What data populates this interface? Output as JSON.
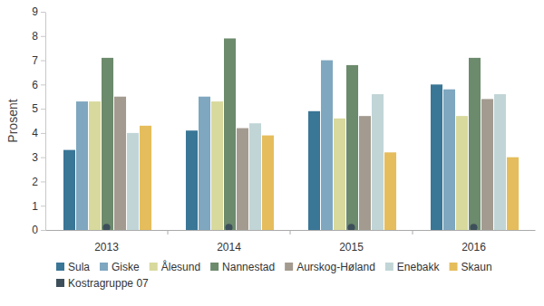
{
  "chart_data": {
    "type": "bar",
    "y_label": "Prosent",
    "categories": [
      "2013",
      "2014",
      "2015",
      "2016"
    ],
    "series": [
      {
        "name": "Sula",
        "color": "#3a7696",
        "values": [
          3.3,
          4.1,
          4.9,
          6.0
        ]
      },
      {
        "name": "Giske",
        "color": "#7fa7bf",
        "values": [
          5.3,
          5.5,
          7.0,
          5.8
        ]
      },
      {
        "name": "Ålesund",
        "color": "#d8d99c",
        "values": [
          5.3,
          5.3,
          4.6,
          4.7
        ]
      },
      {
        "name": "Nannestad",
        "color": "#6c8a6c",
        "values": [
          7.1,
          7.9,
          6.8,
          7.1
        ]
      },
      {
        "name": "Aurskog-Høland",
        "color": "#a39b90",
        "values": [
          5.5,
          4.2,
          4.7,
          5.4
        ]
      },
      {
        "name": "Enebakk",
        "color": "#c1d5d7",
        "values": [
          4.0,
          4.4,
          5.6,
          5.6
        ]
      },
      {
        "name": "Skaun",
        "color": "#e5bd5c",
        "values": [
          4.3,
          3.9,
          3.2,
          3.0
        ]
      },
      {
        "name": "Kostragruppe 07",
        "color": "#3d4f5b",
        "type": "scatter",
        "marker": "circle",
        "values": [
          0.1,
          0.1,
          0.1,
          0.1
        ]
      }
    ],
    "ylim": [
      0,
      9
    ],
    "yticks": [
      0,
      1,
      2,
      3,
      4,
      5,
      6,
      7,
      8,
      9
    ],
    "grid": false,
    "legend": "bottom"
  }
}
